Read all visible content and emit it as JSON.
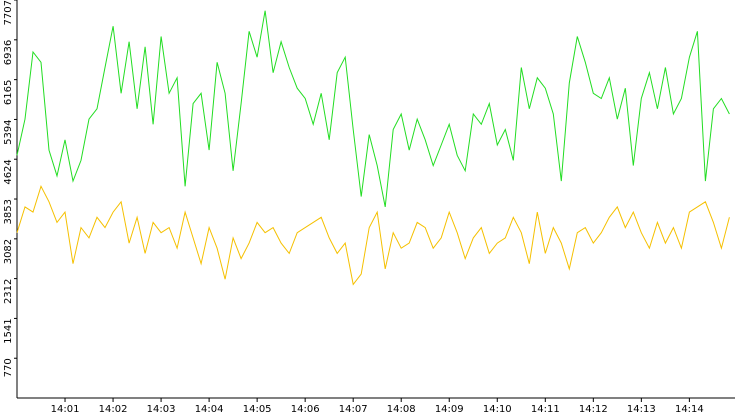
{
  "chart_data": {
    "type": "line",
    "x": [
      0,
      10,
      20,
      30,
      40,
      50,
      60,
      70,
      80,
      90,
      100,
      110,
      120,
      130,
      140,
      150,
      160,
      170,
      180,
      190,
      200,
      210,
      220,
      230,
      240,
      250,
      260,
      270,
      280,
      290,
      300,
      310,
      320,
      330,
      340,
      350,
      360,
      370,
      380,
      390,
      400,
      410,
      420,
      430,
      440,
      450,
      460,
      470,
      480,
      490,
      500,
      510,
      520,
      530,
      540,
      550,
      560,
      570,
      580,
      590,
      600,
      610,
      620,
      630,
      640,
      650,
      660,
      670,
      680,
      690,
      700,
      710,
      720,
      730,
      740,
      750,
      760,
      770,
      780,
      790,
      800,
      810,
      820,
      830,
      840,
      850,
      860,
      870,
      880,
      890
    ],
    "series": [
      {
        "color": "#22dd22",
        "values": [
          4700,
          5400,
          6700,
          6500,
          4800,
          4300,
          5000,
          4200,
          4600,
          5400,
          5600,
          6400,
          7200,
          5900,
          6900,
          5600,
          6800,
          5300,
          7000,
          5900,
          6200,
          4100,
          5700,
          5900,
          4800,
          6500,
          5900,
          4400,
          5700,
          7100,
          6600,
          7500,
          6300,
          6900,
          6400,
          6000,
          5800,
          5300,
          5900,
          5000,
          6300,
          6600,
          5200,
          3900,
          5100,
          4500,
          3700,
          5200,
          5500,
          4800,
          5400,
          5000,
          4500,
          4900,
          5300,
          4700,
          4400,
          5500,
          5300,
          5700,
          4900,
          5200,
          4600,
          6400,
          5600,
          6200,
          6000,
          5500,
          4200,
          6100,
          7000,
          6500,
          5900,
          5800,
          6200,
          5400,
          6000,
          4500,
          5800,
          6300,
          5600,
          6400,
          5500,
          5800,
          6600,
          7100,
          4200,
          5600,
          5800,
          5500
        ]
      },
      {
        "color": "#f5c000",
        "values": [
          3200,
          3700,
          3600,
          4100,
          3800,
          3400,
          3600,
          2600,
          3300,
          3100,
          3500,
          3300,
          3600,
          3800,
          3000,
          3500,
          2800,
          3400,
          3200,
          3300,
          2900,
          3600,
          3100,
          2600,
          3300,
          2900,
          2300,
          3100,
          2700,
          3000,
          3400,
          3200,
          3300,
          3000,
          2800,
          3200,
          3300,
          3400,
          3500,
          3100,
          2800,
          3000,
          2200,
          2400,
          3300,
          3600,
          2500,
          3200,
          2900,
          3000,
          3400,
          3300,
          2900,
          3100,
          3600,
          3200,
          2700,
          3100,
          3300,
          2800,
          3000,
          3100,
          3500,
          3200,
          2600,
          3600,
          2800,
          3300,
          3000,
          2500,
          3200,
          3300,
          3000,
          3200,
          3500,
          3700,
          3300,
          3600,
          3200,
          2900,
          3400,
          3000,
          3300,
          2900,
          3600,
          3700,
          3800,
          3400,
          2900,
          3500
        ]
      }
    ],
    "xlim": [
      0,
      897
    ],
    "xticks": [
      {
        "value": 60,
        "label": "14:01"
      },
      {
        "value": 120,
        "label": "14:02"
      },
      {
        "value": 180,
        "label": "14:03"
      },
      {
        "value": 240,
        "label": "14:04"
      },
      {
        "value": 300,
        "label": "14:05"
      },
      {
        "value": 360,
        "label": "14:06"
      },
      {
        "value": 420,
        "label": "14:07"
      },
      {
        "value": 480,
        "label": "14:08"
      },
      {
        "value": 540,
        "label": "14:09"
      },
      {
        "value": 600,
        "label": "14:10"
      },
      {
        "value": 660,
        "label": "14:11"
      },
      {
        "value": 720,
        "label": "14:12"
      },
      {
        "value": 780,
        "label": "14:13"
      },
      {
        "value": 840,
        "label": "14:14"
      }
    ],
    "ylim": [
      0,
      7707
    ],
    "yticks": [
      770,
      1541,
      2312,
      3082,
      3853,
      4624,
      5394,
      6165,
      6936,
      7707
    ]
  }
}
